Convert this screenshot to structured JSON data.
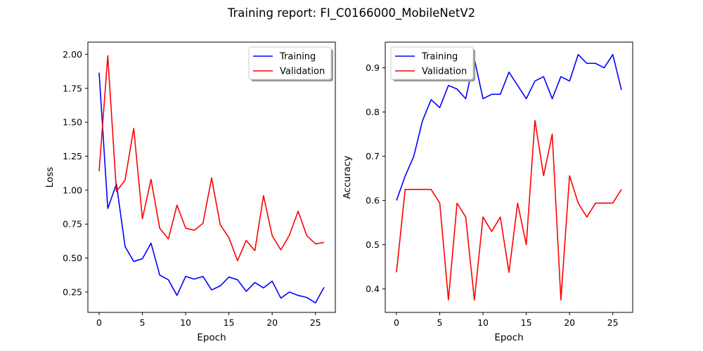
{
  "figure": {
    "title": "Training report: FI_C0166000_MobileNetV2"
  },
  "chart_data": [
    {
      "type": "line",
      "xlabel": "Epoch",
      "ylabel": "Loss",
      "xlim": [
        -1.3,
        27.3
      ],
      "ylim": [
        0.1,
        2.09
      ],
      "xticks": [
        0,
        5,
        10,
        15,
        20,
        25
      ],
      "yticks": [
        0.25,
        0.5,
        0.75,
        1.0,
        1.25,
        1.5,
        1.75,
        2.0
      ],
      "yticklabels": [
        "0.25",
        "0.50",
        "0.75",
        "1.00",
        "1.25",
        "1.50",
        "1.75",
        "2.00"
      ],
      "legend_position": "top-right",
      "x": [
        0,
        1,
        2,
        3,
        4,
        5,
        6,
        7,
        8,
        9,
        10,
        11,
        12,
        13,
        14,
        15,
        16,
        17,
        18,
        19,
        20,
        21,
        22,
        23,
        24,
        25,
        26
      ],
      "series": [
        {
          "name": "Training",
          "color": "#0000ff",
          "values": [
            1.865,
            0.865,
            1.045,
            0.585,
            0.475,
            0.495,
            0.61,
            0.375,
            0.34,
            0.225,
            0.365,
            0.345,
            0.365,
            0.265,
            0.295,
            0.36,
            0.34,
            0.255,
            0.32,
            0.28,
            0.33,
            0.205,
            0.25,
            0.225,
            0.21,
            0.17,
            0.285
          ]
        },
        {
          "name": "Validation",
          "color": "#ff0000",
          "values": [
            1.14,
            1.99,
            0.99,
            1.075,
            1.455,
            0.79,
            1.08,
            0.72,
            0.64,
            0.89,
            0.72,
            0.705,
            0.755,
            1.09,
            0.745,
            0.65,
            0.48,
            0.63,
            0.555,
            0.96,
            0.665,
            0.56,
            0.67,
            0.845,
            0.665,
            0.605,
            0.615
          ]
        }
      ]
    },
    {
      "type": "line",
      "xlabel": "Epoch",
      "ylabel": "Accuracy",
      "xlim": [
        -1.3,
        27.3
      ],
      "ylim": [
        0.347,
        0.958
      ],
      "xticks": [
        0,
        5,
        10,
        15,
        20,
        25
      ],
      "yticks": [
        0.4,
        0.5,
        0.6,
        0.7,
        0.8,
        0.9
      ],
      "yticklabels": [
        "0.4",
        "0.5",
        "0.6",
        "0.7",
        "0.8",
        "0.9"
      ],
      "legend_position": "top-left",
      "x": [
        0,
        1,
        2,
        3,
        4,
        5,
        6,
        7,
        8,
        9,
        10,
        11,
        12,
        13,
        14,
        15,
        16,
        17,
        18,
        19,
        20,
        21,
        22,
        23,
        24,
        25,
        26
      ],
      "series": [
        {
          "name": "Training",
          "color": "#0000ff",
          "values": [
            0.6,
            0.655,
            0.7,
            0.78,
            0.828,
            0.81,
            0.86,
            0.852,
            0.83,
            0.92,
            0.83,
            0.84,
            0.84,
            0.89,
            0.86,
            0.83,
            0.87,
            0.88,
            0.83,
            0.88,
            0.87,
            0.93,
            0.91,
            0.91,
            0.9,
            0.93,
            0.85
          ]
        },
        {
          "name": "Validation",
          "color": "#ff0000",
          "values": [
            0.4375,
            0.625,
            0.625,
            0.625,
            0.625,
            0.594,
            0.375,
            0.594,
            0.5625,
            0.375,
            0.5625,
            0.53,
            0.5625,
            0.4375,
            0.594,
            0.5,
            0.781,
            0.656,
            0.75,
            0.375,
            0.656,
            0.594,
            0.5625,
            0.594,
            0.594,
            0.594,
            0.625
          ]
        }
      ]
    }
  ]
}
